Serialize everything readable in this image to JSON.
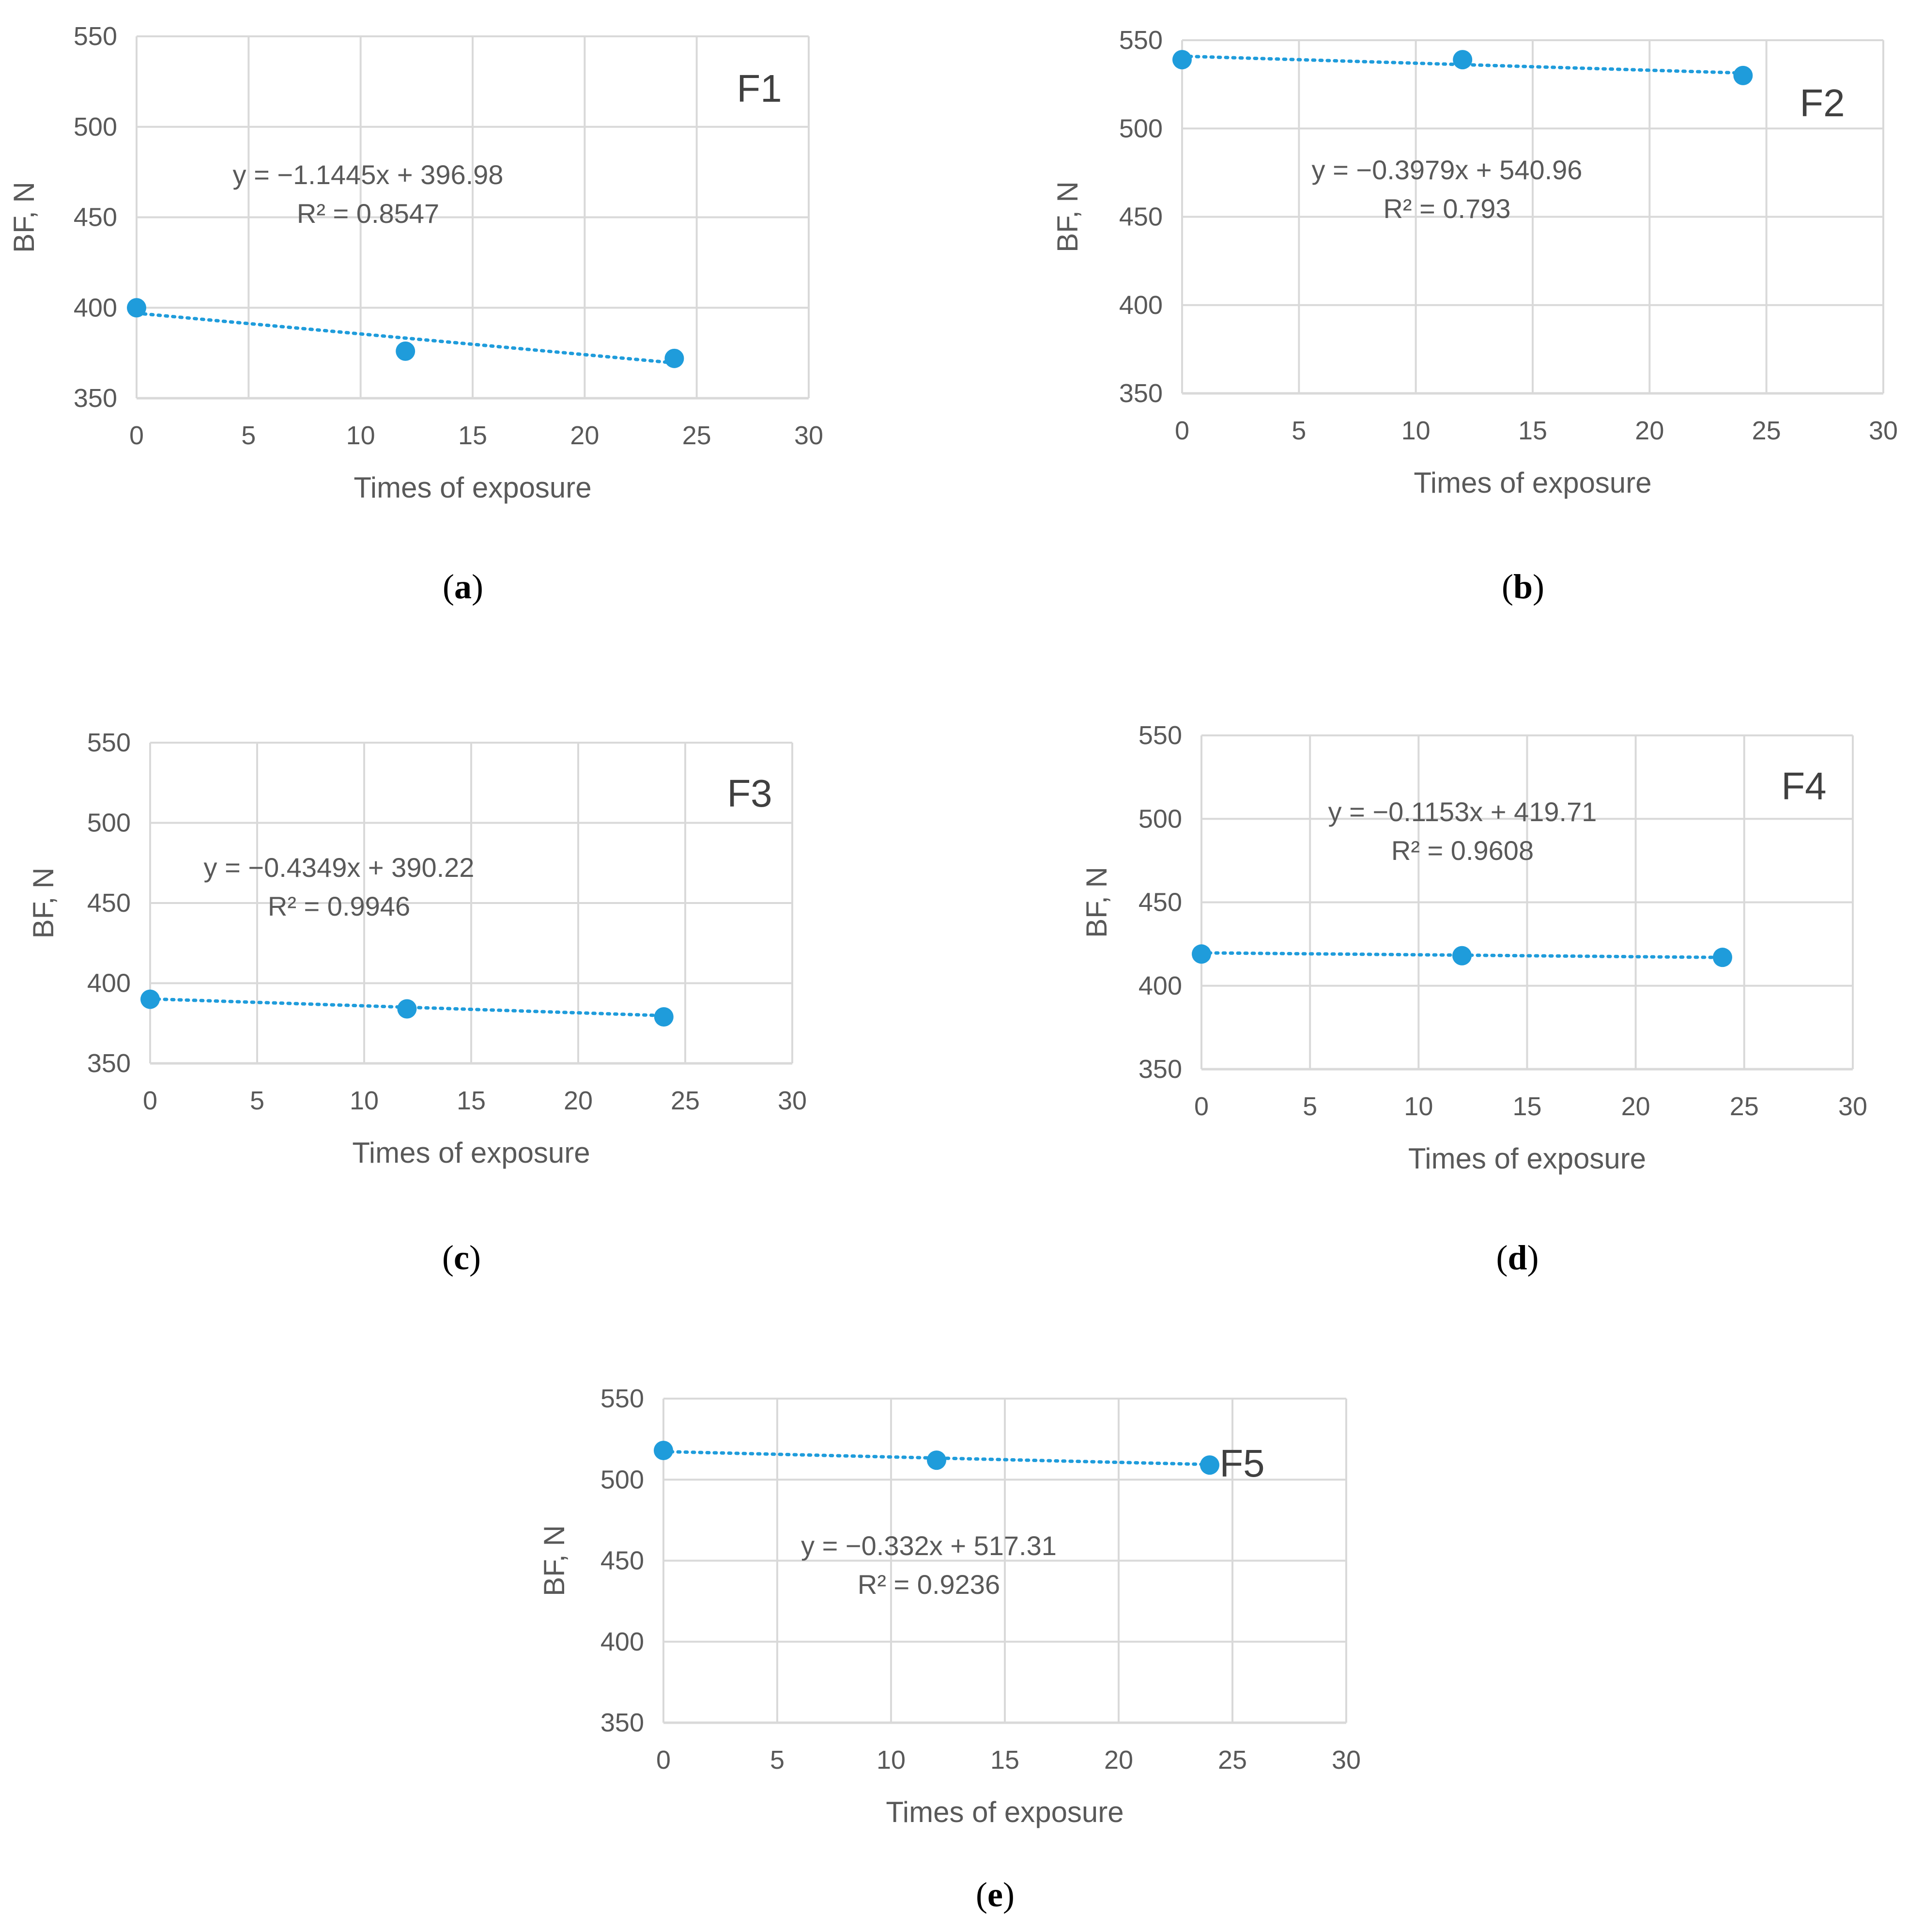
{
  "figure": {
    "background": "#ffffff"
  },
  "chart_data": [
    {
      "type": "scatter",
      "panel": "a",
      "title": "F1",
      "xlabel": "Times of exposure",
      "ylabel": "BF, N",
      "xlim": [
        0,
        30
      ],
      "ylim": [
        350,
        550
      ],
      "xticks": [
        0,
        5,
        10,
        15,
        20,
        25,
        30
      ],
      "yticks": [
        350,
        400,
        450,
        500,
        550
      ],
      "x": [
        0,
        12,
        24
      ],
      "y": [
        400,
        376,
        372
      ],
      "trendline": {
        "slope": -1.1445,
        "intercept": 396.98,
        "equation": "y = −1.1445x + 396.98",
        "r2": "R² = 0.8547"
      },
      "color": "#1f9cdb"
    },
    {
      "type": "scatter",
      "panel": "b",
      "title": "F2",
      "xlabel": "Times of exposure",
      "ylabel": "BF, N",
      "xlim": [
        0,
        30
      ],
      "ylim": [
        350,
        550
      ],
      "xticks": [
        0,
        5,
        10,
        15,
        20,
        25,
        30
      ],
      "yticks": [
        350,
        400,
        450,
        500,
        550
      ],
      "x": [
        0,
        12,
        24
      ],
      "y": [
        539,
        539,
        530
      ],
      "trendline": {
        "slope": -0.3979,
        "intercept": 540.96,
        "equation": "y = −0.3979x + 540.96",
        "r2": "R² = 0.793"
      },
      "color": "#1f9cdb"
    },
    {
      "type": "scatter",
      "panel": "c",
      "title": "F3",
      "xlabel": "Times of exposure",
      "ylabel": "BF, N",
      "xlim": [
        0,
        30
      ],
      "ylim": [
        350,
        550
      ],
      "xticks": [
        0,
        5,
        10,
        15,
        20,
        25,
        30
      ],
      "yticks": [
        350,
        400,
        450,
        500,
        550
      ],
      "x": [
        0,
        12,
        24
      ],
      "y": [
        390,
        384,
        379
      ],
      "trendline": {
        "slope": -0.4349,
        "intercept": 390.22,
        "equation": "y = −0.4349x + 390.22",
        "r2": "R² = 0.9946"
      },
      "color": "#1f9cdb"
    },
    {
      "type": "scatter",
      "panel": "d",
      "title": "F4",
      "xlabel": "Times of exposure",
      "ylabel": "BF, N",
      "xlim": [
        0,
        30
      ],
      "ylim": [
        350,
        550
      ],
      "xticks": [
        0,
        5,
        10,
        15,
        20,
        25,
        30
      ],
      "yticks": [
        350,
        400,
        450,
        500,
        550
      ],
      "x": [
        0,
        12,
        24
      ],
      "y": [
        419,
        418,
        417
      ],
      "trendline": {
        "slope": -0.1153,
        "intercept": 419.71,
        "equation": "y = −0.1153x + 419.71",
        "r2": "R² = 0.9608"
      },
      "color": "#1f9cdb"
    },
    {
      "type": "scatter",
      "panel": "e",
      "title": "F5",
      "xlabel": "Times of exposure",
      "ylabel": "BF, N",
      "xlim": [
        0,
        30
      ],
      "ylim": [
        350,
        550
      ],
      "xticks": [
        0,
        5,
        10,
        15,
        20,
        25,
        30
      ],
      "yticks": [
        350,
        400,
        450,
        500,
        550
      ],
      "x": [
        0,
        12,
        24
      ],
      "y": [
        518,
        512,
        509
      ],
      "trendline": {
        "slope": -0.332,
        "intercept": 517.31,
        "equation": "y = −0.332x + 517.31",
        "r2": "R² = 0.9236"
      },
      "color": "#1f9cdb"
    }
  ]
}
